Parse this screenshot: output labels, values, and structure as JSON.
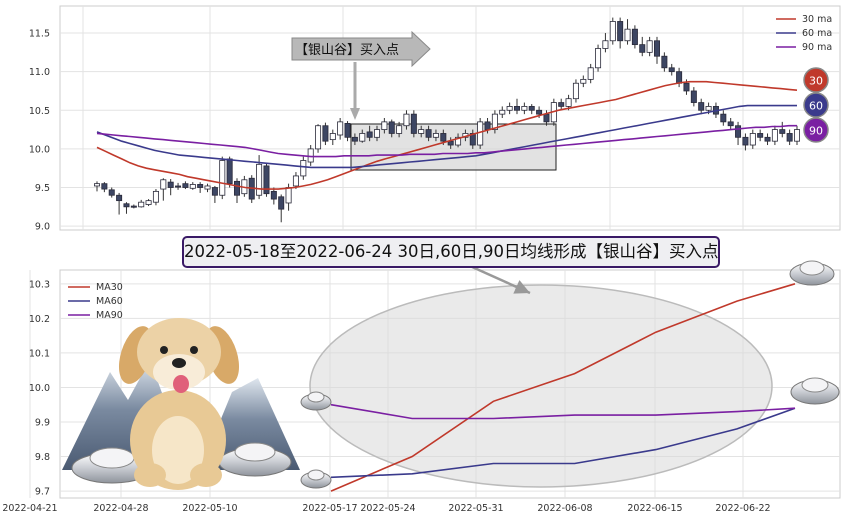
{
  "top_chart": {
    "type": "candlestick",
    "y_ticks": [
      "9.0",
      "9.5",
      "10.0",
      "10.5",
      "11.0",
      "11.5"
    ],
    "ylim": [
      8.95,
      11.85
    ],
    "candles": [
      [
        9.52,
        9.55,
        9.45,
        9.58
      ],
      [
        9.55,
        9.48,
        9.44,
        9.57
      ],
      [
        9.47,
        9.4,
        9.37,
        9.5
      ],
      [
        9.4,
        9.33,
        9.15,
        9.43
      ],
      [
        9.29,
        9.25,
        9.16,
        9.31
      ],
      [
        9.26,
        9.25,
        9.23,
        9.28
      ],
      [
        9.25,
        9.31,
        9.24,
        9.34
      ],
      [
        9.28,
        9.33,
        9.26,
        9.35
      ],
      [
        9.31,
        9.45,
        9.27,
        9.48
      ],
      [
        9.48,
        9.6,
        9.33,
        9.62
      ],
      [
        9.57,
        9.5,
        9.4,
        9.61
      ],
      [
        9.52,
        9.51,
        9.47,
        9.56
      ],
      [
        9.55,
        9.5,
        9.48,
        9.58
      ],
      [
        9.49,
        9.54,
        9.47,
        9.57
      ],
      [
        9.54,
        9.5,
        9.43,
        9.57
      ],
      [
        9.48,
        9.52,
        9.44,
        9.55
      ],
      [
        9.5,
        9.4,
        9.3,
        9.52
      ],
      [
        9.4,
        9.85,
        9.35,
        9.9
      ],
      [
        9.87,
        9.55,
        9.5,
        9.9
      ],
      [
        9.58,
        9.4,
        9.3,
        9.62
      ],
      [
        9.42,
        9.6,
        9.38,
        9.65
      ],
      [
        9.62,
        9.35,
        9.3,
        9.66
      ],
      [
        9.4,
        9.8,
        9.35,
        9.92
      ],
      [
        9.78,
        9.42,
        9.38,
        9.82
      ],
      [
        9.45,
        9.35,
        9.28,
        9.5
      ],
      [
        9.38,
        9.22,
        9.05,
        9.41
      ],
      [
        9.3,
        9.5,
        9.2,
        9.55
      ],
      [
        9.52,
        9.65,
        9.48,
        9.7
      ],
      [
        9.65,
        9.85,
        9.6,
        9.9
      ],
      [
        9.83,
        10.0,
        9.78,
        10.05
      ],
      [
        10.0,
        10.3,
        9.95,
        10.32
      ],
      [
        10.3,
        10.1,
        10.05,
        10.34
      ],
      [
        10.12,
        10.2,
        10.05,
        10.25
      ],
      [
        10.18,
        10.35,
        10.12,
        10.4
      ],
      [
        10.33,
        10.15,
        10.1,
        10.36
      ],
      [
        10.15,
        10.1,
        10.05,
        10.2
      ],
      [
        10.1,
        10.2,
        10.08,
        10.25
      ],
      [
        10.22,
        10.15,
        10.1,
        10.3
      ],
      [
        10.15,
        10.25,
        10.1,
        10.3
      ],
      [
        10.25,
        10.35,
        10.2,
        10.4
      ],
      [
        10.35,
        10.2,
        10.15,
        10.38
      ],
      [
        10.2,
        10.3,
        10.15,
        10.35
      ],
      [
        10.3,
        10.45,
        10.25,
        10.5
      ],
      [
        10.45,
        10.2,
        10.15,
        10.5
      ],
      [
        10.2,
        10.25,
        10.15,
        10.3
      ],
      [
        10.25,
        10.15,
        10.1,
        10.3
      ],
      [
        10.15,
        10.2,
        10.1,
        10.25
      ],
      [
        10.2,
        10.1,
        10.05,
        10.25
      ],
      [
        10.1,
        10.05,
        10.0,
        10.15
      ],
      [
        10.05,
        10.15,
        10.02,
        10.2
      ],
      [
        10.15,
        10.2,
        10.1,
        10.25
      ],
      [
        10.2,
        10.05,
        10.0,
        10.25
      ],
      [
        10.05,
        10.35,
        10.0,
        10.4
      ],
      [
        10.35,
        10.25,
        10.2,
        10.4
      ],
      [
        10.25,
        10.45,
        10.2,
        10.5
      ],
      [
        10.45,
        10.5,
        10.4,
        10.55
      ],
      [
        10.5,
        10.55,
        10.45,
        10.6
      ],
      [
        10.55,
        10.5,
        10.45,
        10.65
      ],
      [
        10.5,
        10.55,
        10.45,
        10.6
      ],
      [
        10.55,
        10.5,
        10.45,
        10.58
      ],
      [
        10.5,
        10.45,
        10.4,
        10.55
      ],
      [
        10.45,
        10.35,
        10.3,
        10.5
      ],
      [
        10.35,
        10.6,
        10.3,
        10.65
      ],
      [
        10.6,
        10.55,
        10.5,
        10.65
      ],
      [
        10.55,
        10.65,
        10.5,
        10.7
      ],
      [
        10.65,
        10.85,
        10.6,
        10.9
      ],
      [
        10.85,
        10.9,
        10.8,
        10.95
      ],
      [
        10.9,
        11.05,
        10.85,
        11.1
      ],
      [
        11.05,
        11.3,
        11.0,
        11.35
      ],
      [
        11.3,
        11.4,
        11.25,
        11.5
      ],
      [
        11.4,
        11.65,
        11.35,
        11.7
      ],
      [
        11.65,
        11.4,
        11.3,
        11.7
      ],
      [
        11.4,
        11.55,
        11.35,
        11.68
      ],
      [
        11.55,
        11.35,
        11.3,
        11.6
      ],
      [
        11.35,
        11.25,
        11.2,
        11.45
      ],
      [
        11.25,
        11.4,
        11.2,
        11.45
      ],
      [
        11.4,
        11.2,
        11.1,
        11.45
      ],
      [
        11.2,
        11.05,
        11.0,
        11.25
      ],
      [
        11.05,
        11.0,
        10.95,
        11.1
      ],
      [
        11.0,
        10.85,
        10.8,
        11.05
      ],
      [
        10.85,
        10.75,
        10.7,
        10.9
      ],
      [
        10.75,
        10.6,
        10.55,
        10.8
      ],
      [
        10.6,
        10.5,
        10.45,
        10.65
      ],
      [
        10.5,
        10.55,
        10.45,
        10.6
      ],
      [
        10.55,
        10.45,
        10.4,
        10.6
      ],
      [
        10.45,
        10.35,
        10.3,
        10.5
      ],
      [
        10.35,
        10.3,
        10.25,
        10.4
      ],
      [
        10.3,
        10.15,
        10.05,
        10.35
      ],
      [
        10.15,
        10.05,
        9.98,
        10.2
      ],
      [
        10.05,
        10.2,
        10.0,
        10.25
      ],
      [
        10.2,
        10.15,
        10.1,
        10.25
      ],
      [
        10.15,
        10.1,
        10.05,
        10.2
      ],
      [
        10.1,
        10.25,
        10.05,
        10.3
      ],
      [
        10.25,
        10.2,
        10.15,
        10.35
      ],
      [
        10.2,
        10.1,
        10.05,
        10.25
      ],
      [
        10.1,
        10.25,
        10.05,
        10.3
      ]
    ],
    "ma30": [
      10.02,
      9.97,
      9.92,
      9.87,
      9.82,
      9.78,
      9.75,
      9.73,
      9.71,
      9.69,
      9.67,
      9.64,
      9.62,
      9.6,
      9.58,
      9.56,
      9.54,
      9.52,
      9.5,
      9.49,
      9.48,
      9.48,
      9.48,
      9.49,
      9.5,
      9.52,
      9.54,
      9.57,
      9.6,
      9.64,
      9.68,
      9.72,
      9.76,
      9.8,
      9.84,
      9.87,
      9.9,
      9.93,
      9.96,
      9.99,
      10.02,
      10.05,
      10.08,
      10.11,
      10.14,
      10.17,
      10.2,
      10.23,
      10.26,
      10.29,
      10.32,
      10.35,
      10.38,
      10.41,
      10.44,
      10.47,
      10.5,
      10.52,
      10.54,
      10.56,
      10.58,
      10.6,
      10.62,
      10.64,
      10.67,
      10.7,
      10.73,
      10.76,
      10.79,
      10.82,
      10.84,
      10.86,
      10.87,
      10.87,
      10.87,
      10.86,
      10.85,
      10.84,
      10.83,
      10.82,
      10.81,
      10.8,
      10.79,
      10.78,
      10.77,
      10.76
    ],
    "ma60": [
      10.22,
      10.18,
      10.14,
      10.1,
      10.07,
      10.04,
      10.01,
      9.98,
      9.96,
      9.94,
      9.92,
      9.91,
      9.9,
      9.89,
      9.88,
      9.87,
      9.86,
      9.85,
      9.84,
      9.83,
      9.82,
      9.81,
      9.8,
      9.79,
      9.78,
      9.77,
      9.76,
      9.76,
      9.76,
      9.76,
      9.76,
      9.76,
      9.77,
      9.78,
      9.79,
      9.8,
      9.81,
      9.82,
      9.83,
      9.84,
      9.85,
      9.86,
      9.87,
      9.88,
      9.89,
      9.9,
      9.91,
      9.93,
      9.95,
      9.97,
      9.99,
      10.01,
      10.03,
      10.05,
      10.07,
      10.09,
      10.11,
      10.13,
      10.15,
      10.17,
      10.19,
      10.21,
      10.23,
      10.25,
      10.27,
      10.29,
      10.31,
      10.33,
      10.35,
      10.37,
      10.39,
      10.41,
      10.43,
      10.45,
      10.47,
      10.49,
      10.51,
      10.53,
      10.55,
      10.56,
      10.56,
      10.56,
      10.56,
      10.56,
      10.56,
      10.56
    ],
    "ma90": [
      10.2,
      10.19,
      10.18,
      10.17,
      10.16,
      10.15,
      10.14,
      10.13,
      10.12,
      10.11,
      10.1,
      10.09,
      10.08,
      10.07,
      10.06,
      10.05,
      10.04,
      10.03,
      10.02,
      10.0,
      9.98,
      9.96,
      9.94,
      9.93,
      9.92,
      9.91,
      9.9,
      9.9,
      9.9,
      9.9,
      9.91,
      9.91,
      9.91,
      9.91,
      9.92,
      9.92,
      9.92,
      9.92,
      9.93,
      9.93,
      9.93,
      9.93,
      9.94,
      9.94,
      9.94,
      9.94,
      9.95,
      9.95,
      9.96,
      9.97,
      9.98,
      9.99,
      10.0,
      10.01,
      10.02,
      10.03,
      10.04,
      10.05,
      10.06,
      10.07,
      10.08,
      10.09,
      10.1,
      10.11,
      10.12,
      10.13,
      10.14,
      10.15,
      10.16,
      10.17,
      10.18,
      10.19,
      10.2,
      10.21,
      10.22,
      10.23,
      10.24,
      10.25,
      10.26,
      10.27,
      10.28,
      10.28,
      10.29,
      10.29,
      10.3,
      10.3
    ],
    "legend": [
      {
        "label": "30 ma",
        "color": "#c0392b"
      },
      {
        "label": "60 ma",
        "color": "#3a3a8c"
      },
      {
        "label": "90 ma",
        "color": "#7a1fa2"
      }
    ],
    "badges": [
      {
        "text": "30",
        "color": "#c0392b"
      },
      {
        "text": "60",
        "color": "#3a3a8c"
      },
      {
        "text": "90",
        "color": "#7a1fa2"
      }
    ],
    "arrow_label": "【银山谷】买入点"
  },
  "banner": "2022-05-18至2022-06-24 30日,60日,90日均线形成【银山谷】买入点",
  "bottom_chart": {
    "type": "line",
    "y_ticks": [
      "9.7",
      "9.8",
      "9.9",
      "10.0",
      "10.1",
      "10.2",
      "10.3"
    ],
    "ylim": [
      9.68,
      10.34
    ],
    "x_tick_labels": [
      "2022-04-21",
      "2022-04-28",
      "2022-05-10",
      "2022-05-17",
      "2022-05-24",
      "2022-05-31",
      "2022-06-08",
      "2022-06-15",
      "2022-06-22"
    ],
    "x_dates": [
      "2022-05-18",
      "2022-05-25",
      "2022-06-01",
      "2022-06-08",
      "2022-06-15",
      "2022-06-22",
      "2022-06-27"
    ],
    "series": [
      {
        "name": "MA30",
        "color": "#c0392b",
        "values": [
          9.7,
          9.8,
          9.96,
          10.04,
          10.16,
          10.25,
          10.3
        ]
      },
      {
        "name": "MA60",
        "color": "#3a3a8c",
        "values": [
          9.74,
          9.75,
          9.78,
          9.78,
          9.82,
          9.88,
          9.94
        ]
      },
      {
        "name": "MA90",
        "color": "#7a1fa2",
        "values": [
          9.95,
          9.91,
          9.91,
          9.92,
          9.92,
          9.93,
          9.94
        ]
      }
    ]
  }
}
